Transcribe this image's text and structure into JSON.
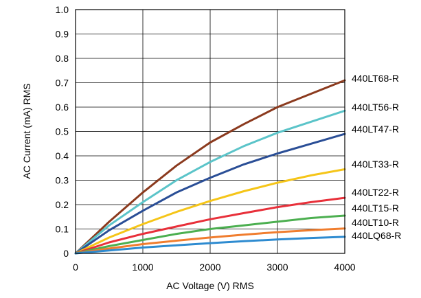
{
  "chart_data": {
    "type": "line",
    "title": "",
    "xlabel": "AC Voltage (V) RMS",
    "ylabel": "AC Current (mA) RMS",
    "xlim": [
      0,
      4000
    ],
    "ylim": [
      0,
      1.0
    ],
    "x_ticks": [
      "0",
      "1000",
      "2000",
      "3000",
      "4000"
    ],
    "y_ticks": [
      "0",
      "0.1",
      "0.2",
      "0.3",
      "0.4",
      "0.5",
      "0.6",
      "0.7",
      "0.8",
      "0.9",
      "1.0"
    ],
    "grid": true,
    "legend": "direct labels at right end of lines",
    "x": [
      0,
      500,
      1000,
      1500,
      2000,
      2500,
      3000,
      3500,
      4000
    ],
    "series": [
      {
        "name": "440LT68-R",
        "color": "#8B3A1E",
        "values": [
          0,
          0.13,
          0.25,
          0.36,
          0.455,
          0.53,
          0.6,
          0.655,
          0.71
        ]
      },
      {
        "name": "440LT56-R",
        "color": "#5BC4C9",
        "values": [
          0,
          0.115,
          0.21,
          0.3,
          0.375,
          0.44,
          0.495,
          0.54,
          0.585
        ]
      },
      {
        "name": "440LT47-R",
        "color": "#2A4E96",
        "values": [
          0,
          0.095,
          0.175,
          0.25,
          0.31,
          0.365,
          0.41,
          0.45,
          0.49
        ]
      },
      {
        "name": "440LT33-R",
        "color": "#F5C518",
        "values": [
          0,
          0.065,
          0.12,
          0.17,
          0.215,
          0.255,
          0.29,
          0.32,
          0.345
        ]
      },
      {
        "name": "440LT22-R",
        "color": "#E8303A",
        "values": [
          0,
          0.045,
          0.08,
          0.11,
          0.14,
          0.165,
          0.19,
          0.21,
          0.228
        ]
      },
      {
        "name": "440LT15-R",
        "color": "#4CAF50",
        "values": [
          0,
          0.03,
          0.055,
          0.08,
          0.1,
          0.115,
          0.13,
          0.145,
          0.155
        ]
      },
      {
        "name": "440LT10-R",
        "color": "#F07D2E",
        "values": [
          0,
          0.02,
          0.038,
          0.052,
          0.065,
          0.077,
          0.087,
          0.095,
          0.102
        ]
      },
      {
        "name": "440LQ68-R",
        "color": "#2E8BD0",
        "values": [
          0,
          0.012,
          0.024,
          0.033,
          0.042,
          0.05,
          0.057,
          0.063,
          0.068
        ]
      }
    ]
  }
}
